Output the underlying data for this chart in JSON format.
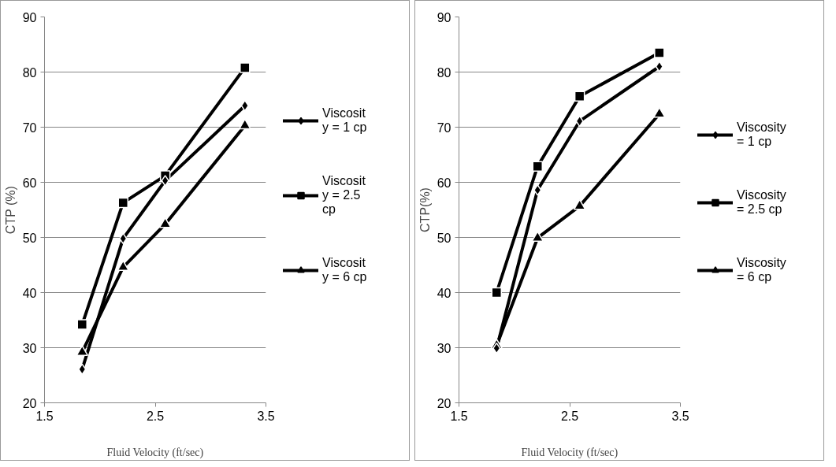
{
  "chart_data": [
    {
      "type": "line",
      "xlabel": "Fluid Velocity (ft/sec)",
      "ylabel": "CTP (%)",
      "xlim": [
        1.5,
        3.5
      ],
      "xticks": [
        1.5,
        2.5,
        3.5
      ],
      "ylim": [
        20,
        90
      ],
      "yticks": [
        20,
        30,
        40,
        50,
        60,
        70,
        80,
        90
      ],
      "grid": "y",
      "legend": "right",
      "x": [
        1.84,
        2.21,
        2.59,
        3.31
      ],
      "series": [
        {
          "name": "Viscosity = 1 cp",
          "color": "#000000",
          "marker": "diamond",
          "values": [
            26.1,
            49.8,
            60.3,
            73.9
          ]
        },
        {
          "name": "Viscosity = 2.5 cp",
          "color": "#000000",
          "marker": "square",
          "values": [
            34.2,
            56.3,
            61.2,
            80.8
          ]
        },
        {
          "name": "Viscosity = 6 cp",
          "color": "#000000",
          "marker": "triangle",
          "values": [
            29.2,
            44.6,
            52.4,
            70.3
          ]
        }
      ]
    },
    {
      "type": "line",
      "xlabel": "Fluid Velocity (ft/sec)",
      "ylabel": "CTP(%)",
      "xlim": [
        1.5,
        3.5
      ],
      "xticks": [
        1.5,
        2.5,
        3.5
      ],
      "ylim": [
        20,
        90
      ],
      "yticks": [
        20,
        30,
        40,
        50,
        60,
        70,
        80,
        90
      ],
      "grid": "y",
      "legend": "right",
      "x": [
        1.84,
        2.21,
        2.59,
        3.31
      ],
      "series": [
        {
          "name": "Viscosity = 1 cp",
          "color": "#000000",
          "marker": "diamond",
          "values": [
            29.9,
            58.6,
            71.1,
            81.0
          ]
        },
        {
          "name": "Viscosity = 2.5 cp",
          "color": "#000000",
          "marker": "square",
          "values": [
            40.0,
            62.9,
            75.6,
            83.5
          ]
        },
        {
          "name": "Viscosity = 6 cp",
          "color": "#000000",
          "marker": "triangle",
          "values": [
            30.4,
            49.9,
            55.7,
            72.4
          ]
        }
      ]
    }
  ]
}
